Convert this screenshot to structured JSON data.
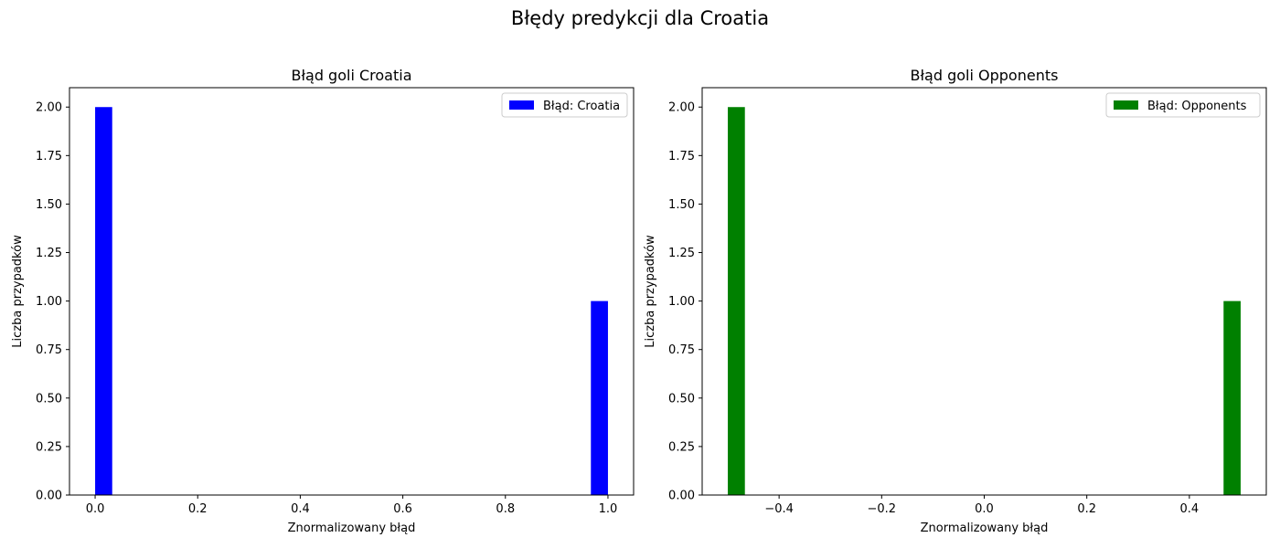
{
  "figure": {
    "suptitle": "Błędy predykcji dla Croatia"
  },
  "chart_data": [
    {
      "type": "bar",
      "title": "Błąd goli Croatia",
      "xlabel": "Znormalizowany błąd",
      "ylabel": "Liczba przypadków",
      "xlim": [
        -0.05,
        1.05
      ],
      "ylim": [
        0,
        2.1
      ],
      "xticks": [
        0.0,
        0.2,
        0.4,
        0.6,
        0.8,
        1.0
      ],
      "xtick_labels": [
        "0.0",
        "0.2",
        "0.4",
        "0.6",
        "0.8",
        "1.0"
      ],
      "yticks": [
        0,
        0.25,
        0.5,
        0.75,
        1.0,
        1.25,
        1.5,
        1.75,
        2.0
      ],
      "ytick_labels": [
        "0.00",
        "0.25",
        "0.50",
        "0.75",
        "1.00",
        "1.25",
        "1.50",
        "1.75",
        "2.00"
      ],
      "color": "#0000ff",
      "legend": {
        "label": "Błąd: Croatia",
        "placement": "top-right"
      },
      "bins": [
        {
          "x0": 0.0,
          "x1": 0.0333,
          "value": 2
        },
        {
          "x0": 0.9667,
          "x1": 1.0,
          "value": 1
        }
      ]
    },
    {
      "type": "bar",
      "title": "Błąd goli Opponents",
      "xlabel": "Znormalizowany błąd",
      "ylabel": "Liczba przypadków",
      "xlim": [
        -0.55,
        0.55
      ],
      "ylim": [
        0,
        2.1
      ],
      "xticks": [
        -0.4,
        -0.2,
        0.0,
        0.2,
        0.4
      ],
      "xtick_labels": [
        "−0.4",
        "−0.2",
        "0.0",
        "0.2",
        "0.4"
      ],
      "yticks": [
        0,
        0.25,
        0.5,
        0.75,
        1.0,
        1.25,
        1.5,
        1.75,
        2.0
      ],
      "ytick_labels": [
        "0.00",
        "0.25",
        "0.50",
        "0.75",
        "1.00",
        "1.25",
        "1.50",
        "1.75",
        "2.00"
      ],
      "color": "#008000",
      "legend": {
        "label": "Błąd: Opponents",
        "placement": "top-right"
      },
      "bins": [
        {
          "x0": -0.5,
          "x1": -0.4667,
          "value": 2
        },
        {
          "x0": 0.4667,
          "x1": 0.5,
          "value": 1
        }
      ]
    }
  ]
}
